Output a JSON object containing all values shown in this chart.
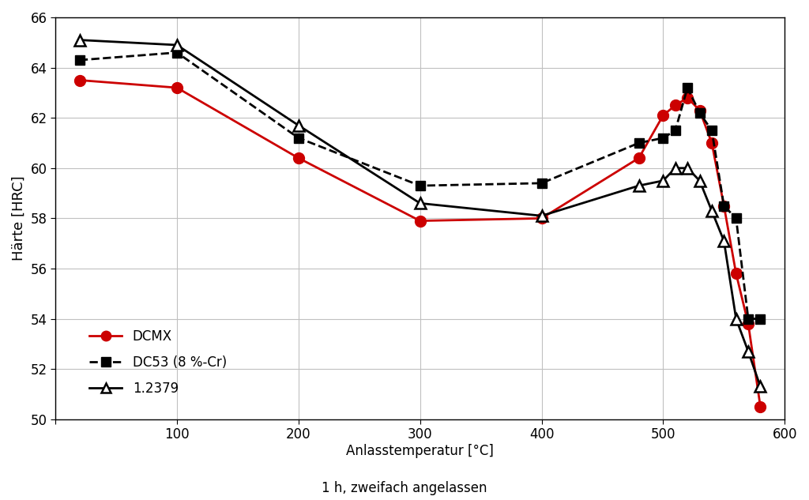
{
  "dcmx_x": [
    20,
    100,
    200,
    300,
    400,
    480,
    500,
    510,
    520,
    530,
    540,
    550,
    560,
    570,
    580
  ],
  "dcmx_y": [
    63.5,
    63.2,
    60.4,
    57.9,
    58.0,
    60.4,
    62.1,
    62.5,
    62.8,
    62.3,
    61.0,
    58.5,
    55.8,
    53.8,
    50.5
  ],
  "dc53_x": [
    20,
    100,
    200,
    300,
    400,
    480,
    500,
    510,
    520,
    530,
    540,
    550,
    560,
    570,
    580
  ],
  "dc53_y": [
    64.3,
    64.6,
    61.2,
    59.3,
    59.4,
    61.0,
    61.2,
    61.5,
    63.2,
    62.2,
    61.5,
    58.5,
    58.0,
    54.0,
    54.0
  ],
  "s1379_x": [
    20,
    100,
    200,
    300,
    400,
    480,
    500,
    510,
    520,
    530,
    540,
    550,
    560,
    570,
    580
  ],
  "s1379_y": [
    65.1,
    64.9,
    61.7,
    58.6,
    58.1,
    59.3,
    59.5,
    60.0,
    60.0,
    59.5,
    58.3,
    57.1,
    54.0,
    52.7,
    51.3
  ],
  "ylabel": "Härte [HRC]",
  "xlabel": "Anlasstemperatur [°C]",
  "xlabel2": "1 h, zweifach angelassen",
  "ylim": [
    50,
    66
  ],
  "xlim": [
    0,
    600
  ],
  "yticks": [
    50,
    52,
    54,
    56,
    58,
    60,
    62,
    64,
    66
  ],
  "xticks": [
    0,
    100,
    200,
    300,
    400,
    500,
    600
  ],
  "legend_dcmx": "DCMX",
  "legend_dc53": "DC53 (8 %-Cr)",
  "legend_1379": "1.2379",
  "dcmx_color": "#cc0000",
  "dc53_color": "#000000",
  "s1379_color": "#000000",
  "background_color": "#ffffff",
  "grid_color": "#c0c0c0"
}
